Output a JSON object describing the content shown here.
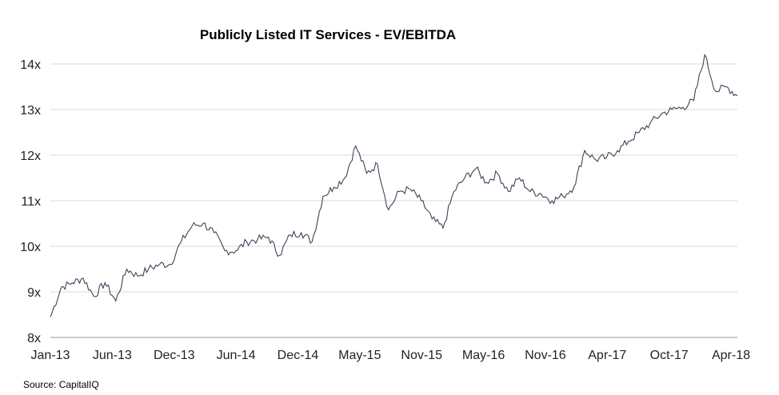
{
  "chart_data": {
    "type": "line",
    "title": "Publicly Listed IT Services - EV/EBITDA",
    "source": "Source: CapitalIQ",
    "xlabel": "",
    "ylabel": "",
    "ylim": [
      8,
      14
    ],
    "yticks": [
      8,
      9,
      10,
      11,
      12,
      13,
      14
    ],
    "ytick_labels": [
      "8x",
      "9x",
      "10x",
      "11x",
      "12x",
      "13x",
      "14x"
    ],
    "xticks": [
      "Jan-13",
      "Jun-13",
      "Dec-13",
      "Jun-14",
      "Dec-14",
      "May-15",
      "Nov-15",
      "May-16",
      "Nov-16",
      "Apr-17",
      "Oct-17",
      "Apr-18"
    ],
    "grid": "horizontal",
    "line_color": "#3a4556",
    "series": [
      {
        "x": [
          "Jan-13",
          "Feb-13",
          "Mar-13",
          "Apr-13",
          "May-13",
          "Jun-13",
          "Jul-13",
          "Aug-13",
          "Sep-13",
          "Oct-13",
          "Nov-13",
          "Dec-13",
          "Jan-14",
          "Feb-14",
          "Mar-14",
          "Apr-14",
          "May-14",
          "Jun-14",
          "Jul-14",
          "Aug-14",
          "Sep-14",
          "Oct-14",
          "Nov-14",
          "Dec-14",
          "Jan-15",
          "Feb-15",
          "Mar-15",
          "Apr-15",
          "May-15",
          "Jun-15",
          "Jul-15",
          "Aug-15",
          "Sep-15",
          "Oct-15",
          "Nov-15",
          "Dec-15",
          "Jan-16",
          "Feb-16",
          "Mar-16",
          "Apr-16",
          "May-16",
          "Jun-16",
          "Jul-16",
          "Aug-16",
          "Sep-16",
          "Oct-16",
          "Nov-16",
          "Dec-16",
          "Jan-17",
          "Feb-17",
          "Mar-17",
          "Apr-17",
          "May-17",
          "Jun-17",
          "Jul-17",
          "Aug-17",
          "Sep-17",
          "Oct-17",
          "Nov-17",
          "Dec-17",
          "Jan-18",
          "Feb-18",
          "Mar-18",
          "Apr-18"
        ],
        "values": [
          8.45,
          9.1,
          9.2,
          9.3,
          8.9,
          9.2,
          8.8,
          9.5,
          9.35,
          9.5,
          9.6,
          9.6,
          10.1,
          10.45,
          10.5,
          10.3,
          9.9,
          9.9,
          10.1,
          10.15,
          10.2,
          9.8,
          10.25,
          10.3,
          10.1,
          11.1,
          11.3,
          11.5,
          12.2,
          11.6,
          11.8,
          10.8,
          11.2,
          11.25,
          11.0,
          10.6,
          10.4,
          11.2,
          11.5,
          11.7,
          11.4,
          11.6,
          11.2,
          11.5,
          11.2,
          11.15,
          11.0,
          11.1,
          11.3,
          12.1,
          11.9,
          11.95,
          12.1,
          12.3,
          12.5,
          12.7,
          12.9,
          13.0,
          13.05,
          13.2,
          14.2,
          13.4,
          13.5,
          13.3
        ]
      }
    ]
  }
}
